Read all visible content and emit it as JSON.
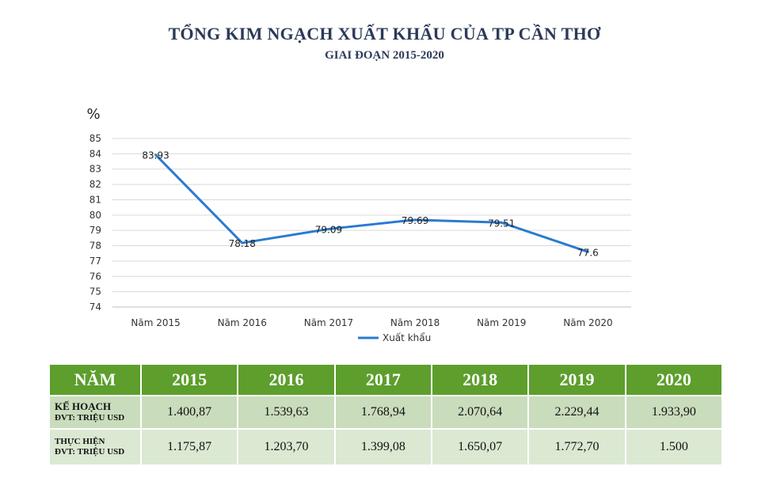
{
  "title": "TỔNG KIM NGẠCH XUẤT KHẨU CỦA TP CẦN THƠ",
  "subtitle": "GIAI ĐOẠN 2015-2020",
  "chart_data": {
    "type": "line",
    "categories": [
      "Năm 2015",
      "Năm 2016",
      "Năm 2017",
      "Năm 2018",
      "Năm 2019",
      "Năm 2020"
    ],
    "series": [
      {
        "name": "Xuất khẩu",
        "values": [
          83.93,
          78.18,
          79.09,
          79.69,
          79.51,
          77.6
        ],
        "labels": [
          "83.93",
          "78.18",
          "79.09",
          "79.69",
          "79.51",
          "77.6"
        ],
        "color": "#2a7bd0"
      }
    ],
    "ylabel": "%",
    "ylim": [
      74,
      85
    ],
    "yticks": [
      74,
      75,
      76,
      77,
      78,
      79,
      80,
      81,
      82,
      83,
      84,
      85
    ],
    "grid": true,
    "legend": "bottom"
  },
  "table": {
    "header_label": "NĂM",
    "years": [
      "2015",
      "2016",
      "2017",
      "2018",
      "2019",
      "2020"
    ],
    "rows": [
      {
        "label": "KẾ HOẠCH",
        "unit": "ĐVT: TRIỆU USD",
        "values": [
          "1.400,87",
          "1.539,63",
          "1.768,94",
          "2.070,64",
          "2.229,44",
          "1.933,90"
        ]
      },
      {
        "label": "THỰC HIỆN",
        "unit": "ĐVT: TRIỆU USD",
        "values": [
          "1.175,87",
          "1.203,70",
          "1.399,08",
          "1.650,07",
          "1.772,70",
          "1.500"
        ]
      }
    ]
  },
  "colors": {
    "line": "#2a7bd0",
    "header_bg": "#5d9e2c",
    "row1_bg": "#c9dcbc",
    "row2_bg": "#dbe8d2",
    "title": "#2b3a57"
  }
}
